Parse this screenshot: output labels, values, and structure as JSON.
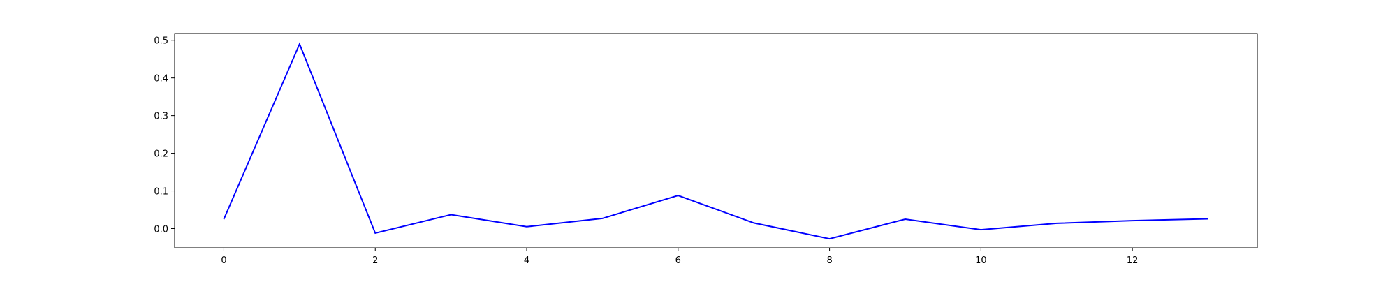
{
  "chart_data": {
    "type": "line",
    "title": "",
    "xlabel": "",
    "ylabel": "",
    "x": [
      0,
      1,
      2,
      3,
      4,
      5,
      6,
      7,
      8,
      9,
      10,
      11,
      12,
      13
    ],
    "series": [
      {
        "values": [
          0.025,
          0.49,
          -0.012,
          0.037,
          0.005,
          0.027,
          0.088,
          0.015,
          -0.027,
          0.025,
          -0.003,
          0.014,
          0.021,
          0.026
        ],
        "color": "#0000ff"
      }
    ],
    "xlim": [
      -0.65,
      13.65
    ],
    "ylim": [
      -0.051,
      0.518
    ],
    "xticks": [
      0,
      2,
      4,
      6,
      8,
      10,
      12
    ],
    "xtick_labels": [
      "0",
      "2",
      "4",
      "6",
      "8",
      "10",
      "12"
    ],
    "yticks": [
      0.0,
      0.1,
      0.2,
      0.3,
      0.4,
      0.5
    ],
    "ytick_labels": [
      "0.0",
      "0.1",
      "0.2",
      "0.3",
      "0.4",
      "0.5"
    ],
    "grid": false,
    "legend": "none"
  }
}
